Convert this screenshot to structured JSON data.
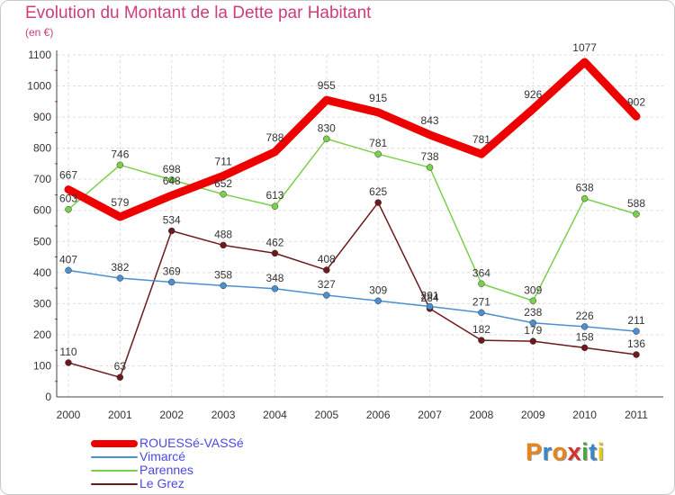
{
  "header": {
    "title": "Evolution du Montant de la Dette par Habitant",
    "subtitle": "(en €)"
  },
  "logo": {
    "text": "Proxiti",
    "colors": [
      "#e8841a",
      "#3a86c8",
      "#e8841a",
      "#d83030",
      "#4aa83a",
      "#3a86c8",
      "#e8c81a"
    ]
  },
  "chart_data": {
    "type": "line",
    "x": [
      "2000",
      "2001",
      "2002",
      "2003",
      "2004",
      "2005",
      "2006",
      "2007",
      "2008",
      "2009",
      "2010",
      "2011"
    ],
    "ylim": [
      0,
      1100
    ],
    "yticks": [
      0,
      100,
      200,
      300,
      400,
      500,
      600,
      700,
      800,
      900,
      1000,
      1100
    ],
    "grid": true,
    "legend_position": "bottom-left",
    "series": [
      {
        "name": "ROUESSé-VASSé",
        "color": "#ee0000",
        "values": [
          667,
          579,
          648,
          711,
          788,
          955,
          915,
          843,
          781,
          926,
          1077,
          902
        ]
      },
      {
        "name": "Vimarcé",
        "color": "#4a90d0",
        "values": [
          407,
          382,
          369,
          358,
          348,
          327,
          309,
          291,
          271,
          238,
          226,
          211
        ]
      },
      {
        "name": "Parennes",
        "color": "#7ad04a",
        "values": [
          603,
          746,
          698,
          652,
          613,
          830,
          781,
          738,
          364,
          309,
          638,
          588
        ]
      },
      {
        "name": "Le Grez",
        "color": "#6e1a1a",
        "values": [
          110,
          63,
          534,
          488,
          462,
          408,
          625,
          284,
          182,
          179,
          158,
          136
        ]
      }
    ]
  }
}
